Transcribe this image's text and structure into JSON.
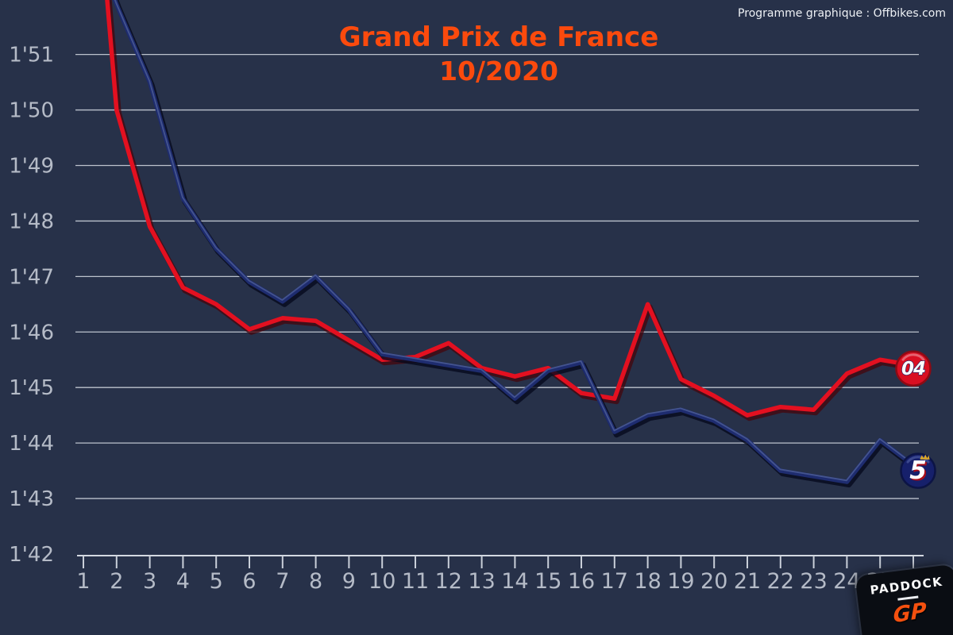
{
  "header": {
    "credit": "Programme graphique : Offbikes.com"
  },
  "title": {
    "line1": "Grand Prix de France",
    "line2": "10/2020"
  },
  "logo": {
    "line1": "PADDOCK",
    "line2": "GP"
  },
  "colors": {
    "background": "#273149",
    "gridline": "#c9cfd9",
    "axis_text": "#b5bbc7",
    "title_accent": "#fb4a0d",
    "credit_text": "#eef1f5",
    "rider_04_line": "#e31020",
    "rider_5_line": "#1e2c6f",
    "logo_gp_orange": "#f4500f"
  },
  "chart_data": {
    "type": "line",
    "title": "Grand Prix de France",
    "subtitle": "10/2020",
    "xlabel": "",
    "ylabel": "",
    "grid": true,
    "legend_position": "badges at line ends (right)",
    "x": [
      1,
      2,
      3,
      4,
      5,
      6,
      7,
      8,
      9,
      10,
      11,
      12,
      13,
      14,
      15,
      16,
      17,
      18,
      19,
      20,
      21,
      22,
      23,
      24,
      25,
      26
    ],
    "xlim": [
      1,
      26
    ],
    "ylim_seconds": [
      102,
      111.9
    ],
    "y_axis": {
      "labels": [
        "1'51",
        "1'50",
        "1'49",
        "1'48",
        "1'47",
        "1'46",
        "1'45",
        "1'44",
        "1'43",
        "1'42"
      ],
      "seconds": [
        111,
        110,
        109,
        108,
        107,
        106,
        105,
        104,
        103,
        102
      ]
    },
    "series": [
      {
        "name": "04",
        "badge_label": "04",
        "color": "#e31020",
        "shadow": "rgba(70,5,12,0.75)",
        "badge_bg": "#d90f22",
        "badge_ring": "#8e0a14",
        "badge_gloss": "rgba(255,255,255,0.35)",
        "badge_offset": [
          0,
          4
        ],
        "values_seconds": [
          117.0,
          110.0,
          107.9,
          106.8,
          106.5,
          106.05,
          106.25,
          106.2,
          105.85,
          105.5,
          105.55,
          105.8,
          105.35,
          105.2,
          105.35,
          104.9,
          104.8,
          106.5,
          105.15,
          104.85,
          104.5,
          104.65,
          104.6,
          105.25,
          105.5,
          105.4
        ],
        "note": "lap 1 runs off the top of the chart (estimated)"
      },
      {
        "name": "5",
        "badge_label": "5",
        "color": "#1e2c6f",
        "shadow": "rgba(6,10,30,0.8)",
        "highlight": "rgba(170,190,225,0.28)",
        "badge_bg": "#16206b",
        "badge_ring": "#0c1445",
        "badge_gloss": "rgba(130,150,210,0.35)",
        "crown_color": "#d9a62a",
        "badge_offset": [
          6,
          7
        ],
        "values_seconds": [
          113.5,
          111.9,
          110.5,
          108.4,
          107.5,
          106.9,
          106.55,
          107.0,
          106.4,
          105.6,
          105.5,
          105.4,
          105.3,
          104.8,
          105.3,
          105.45,
          104.2,
          104.5,
          104.6,
          104.4,
          104.05,
          103.5,
          103.4,
          103.3,
          104.05,
          103.6
        ],
        "note": "lap 1 runs off the top of the chart (estimated)"
      }
    ]
  }
}
